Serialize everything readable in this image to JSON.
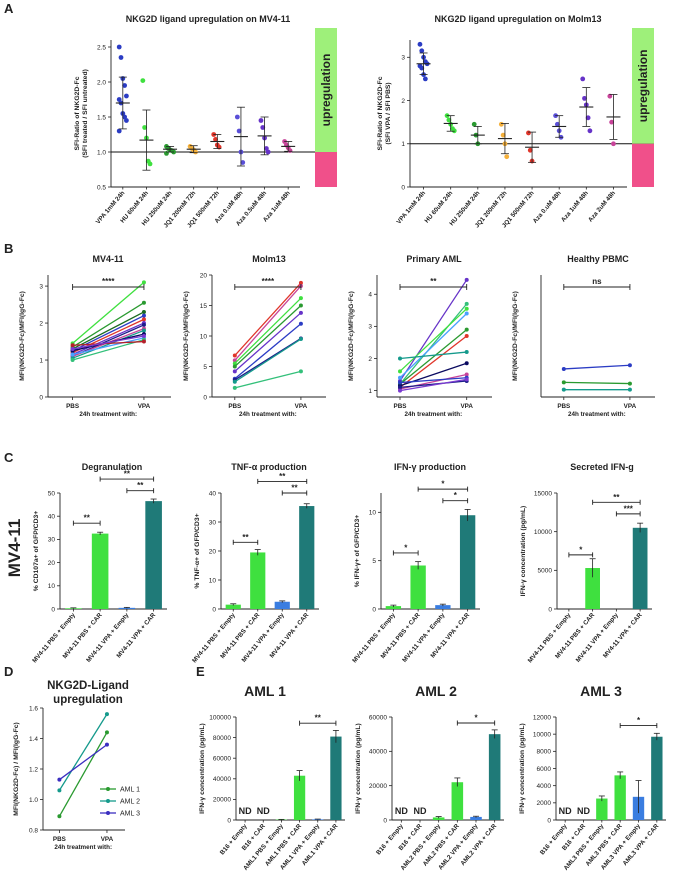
{
  "labels": {
    "A": "A",
    "B": "B",
    "C": "C",
    "D": "D",
    "E": "E"
  },
  "chart_data": [
    {
      "id": "A1",
      "type": "scatter",
      "title": "NKG2D ligand upregulation on MV4-11",
      "ylabel": "SFI-Ratio of NKG2D-Fc\n(SFI treated / SFI untreated)",
      "ylim": [
        0.5,
        2.6
      ],
      "yticks": [
        0.5,
        1.0,
        1.5,
        2.0,
        2.5
      ],
      "tick_labels": [
        "0.5",
        "1.0",
        "1.5",
        "2.0",
        "2.5"
      ],
      "baseline": 1.0,
      "side_label": "upregulation",
      "categories": [
        "VPA 1mM 24h",
        "HU 60uM 24h",
        "HU 250uM 24h",
        "JQ1 200nM 72h",
        "JQ1 500nM 72h",
        "Aza 0.uM 48h",
        "Aza 0.5uM 48h",
        "Aza 1uM 48h"
      ],
      "colors": [
        "#2b3cc4",
        "#3fe03f",
        "#2a9a30",
        "#f5b03a",
        "#e0352a",
        "#5a4fd8",
        "#6633c8",
        "#c8449a"
      ],
      "series": [
        {
          "mean": 1.7,
          "sd": 0.37,
          "points": [
            2.5,
            2.35,
            2.05,
            1.95,
            1.8,
            1.75,
            1.7,
            1.55,
            1.5,
            1.45,
            1.3
          ]
        },
        {
          "mean": 1.17,
          "sd": 0.43,
          "points": [
            2.02,
            1.35,
            1.2,
            0.87,
            0.83
          ]
        },
        {
          "mean": 1.04,
          "sd": 0.04,
          "points": [
            1.08,
            1.05,
            1.03,
            1.02,
            1.0,
            0.98
          ]
        },
        {
          "mean": 1.04,
          "sd": 0.05,
          "points": [
            1.08,
            1.05,
            1.03,
            1.0
          ]
        },
        {
          "mean": 1.15,
          "sd": 0.1,
          "points": [
            1.25,
            1.18,
            1.1,
            1.07
          ]
        },
        {
          "mean": 1.22,
          "sd": 0.42,
          "points": [
            1.5,
            1.3,
            1.0,
            0.85
          ]
        },
        {
          "mean": 1.23,
          "sd": 0.27,
          "points": [
            1.45,
            1.35,
            1.2,
            1.05,
            1.0
          ]
        },
        {
          "mean": 1.08,
          "sd": 0.07,
          "points": [
            1.15,
            1.1,
            1.06,
            1.02
          ]
        }
      ]
    },
    {
      "id": "A2",
      "type": "scatter",
      "title": "NKG2D ligand upregulation on Molm13",
      "ylabel": "SFI-Ratio of NKG2D-Fc\n(SFI VPA / SFI PBS)",
      "ylim": [
        0,
        3.4
      ],
      "yticks": [
        0,
        1,
        2,
        3
      ],
      "tick_labels": [
        "0",
        "1",
        "2",
        "3"
      ],
      "baseline": 1.0,
      "side_label": "upregulation",
      "categories": [
        "VPA 1mM 24h",
        "HU 60uM 24h",
        "HU 250uM 24h",
        "JQ1 200nM 72h",
        "JQ1 500nM 72h",
        "Aza 0.uM 48h",
        "Aza 1uM 48h",
        "Aza 2uM 48h"
      ],
      "colors": [
        "#2b3cc4",
        "#3fe03f",
        "#2a9a30",
        "#f5b03a",
        "#e0352a",
        "#5a4fd8",
        "#6633c8",
        "#c8449a"
      ],
      "series": [
        {
          "mean": 2.85,
          "sd": 0.25,
          "points": [
            3.3,
            3.15,
            3.0,
            2.9,
            2.85,
            2.8,
            2.75,
            2.6,
            2.5
          ]
        },
        {
          "mean": 1.47,
          "sd": 0.18,
          "points": [
            1.65,
            1.55,
            1.45,
            1.35,
            1.3
          ]
        },
        {
          "mean": 1.2,
          "sd": 0.2,
          "points": [
            1.45,
            1.2,
            1.0
          ]
        },
        {
          "mean": 1.12,
          "sd": 0.35,
          "points": [
            1.45,
            1.2,
            1.0,
            0.7
          ]
        },
        {
          "mean": 0.92,
          "sd": 0.35,
          "points": [
            1.25,
            0.85,
            0.6
          ]
        },
        {
          "mean": 1.4,
          "sd": 0.25,
          "points": [
            1.65,
            1.45,
            1.3,
            1.15
          ]
        },
        {
          "mean": 1.85,
          "sd": 0.45,
          "points": [
            2.5,
            2.05,
            1.9,
            1.6,
            1.3
          ]
        },
        {
          "mean": 1.62,
          "sd": 0.52,
          "points": [
            2.1,
            1.5,
            1.0
          ]
        }
      ]
    },
    {
      "id": "B1",
      "type": "line",
      "title": "MV4-11",
      "xcat": [
        "PBS",
        "VPA"
      ],
      "xlabel": "24h treatment with:",
      "ylabel": "MFI(NKG2D-Fc)/MFI(IgG-Fc)",
      "ylim": [
        0,
        3.3
      ],
      "yticks": [
        0,
        1,
        2,
        3
      ],
      "tick_labels": [
        "0",
        "1",
        "2",
        "3"
      ],
      "sig": "****",
      "lines": [
        [
          1.45,
          3.1
        ],
        [
          1.35,
          2.55
        ],
        [
          1.3,
          2.3
        ],
        [
          1.25,
          2.2
        ],
        [
          1.2,
          2.1
        ],
        [
          1.15,
          2.0
        ],
        [
          1.1,
          1.95
        ],
        [
          1.1,
          1.85
        ],
        [
          1.05,
          1.8
        ],
        [
          1.25,
          1.7
        ],
        [
          1.15,
          1.6
        ],
        [
          1.0,
          1.55
        ],
        [
          1.4,
          1.5
        ],
        [
          1.3,
          1.65
        ]
      ],
      "colors": [
        "#3fe03f",
        "#2a9a30",
        "#1a6a20",
        "#2b3cc4",
        "#e0352a",
        "#6633c8",
        "#1c1c8a",
        "#c8449a",
        "#159a8c",
        "#0a0a60",
        "#4aa0ff",
        "#33c07a",
        "#b5202a",
        "#7a3ad0"
      ]
    },
    {
      "id": "B2",
      "type": "line",
      "title": "Molm13",
      "xcat": [
        "PBS",
        "VPA"
      ],
      "xlabel": "24h treatment with:",
      "ylabel": "MFI(NKG2D-Fc)/MFI(IgG-Fc)",
      "ylim": [
        0,
        20
      ],
      "yticks": [
        0,
        5,
        10,
        15,
        20
      ],
      "tick_labels": [
        "0",
        "5",
        "10",
        "15",
        "20"
      ],
      "sig": "****",
      "lines": [
        [
          6.8,
          18.7
        ],
        [
          6.0,
          18.2
        ],
        [
          5.5,
          16.2
        ],
        [
          5.0,
          15.0
        ],
        [
          4.2,
          13.8
        ],
        [
          3.0,
          12.0
        ],
        [
          2.8,
          9.6
        ],
        [
          2.5,
          9.5
        ],
        [
          1.5,
          4.2
        ]
      ],
      "colors": [
        "#e0352a",
        "#c8449a",
        "#3fe03f",
        "#2a9a30",
        "#6633c8",
        "#2b3cc4",
        "#1c1c8a",
        "#159a8c",
        "#33c07a"
      ]
    },
    {
      "id": "B3",
      "type": "line",
      "title": "Primary AML",
      "xcat": [
        "PBS",
        "VPA"
      ],
      "xlabel": "24h treatment with:",
      "ylabel": "MFI(NKG2D-Fc)/MFI(IgG-Fc)",
      "ylim": [
        0.8,
        4.6
      ],
      "yticks": [
        1,
        2,
        3,
        4
      ],
      "tick_labels": [
        "1",
        "2",
        "3",
        "4"
      ],
      "sig": "**",
      "lines": [
        [
          1.3,
          4.45
        ],
        [
          1.2,
          3.7
        ],
        [
          1.6,
          3.55
        ],
        [
          1.4,
          3.4
        ],
        [
          1.2,
          2.9
        ],
        [
          1.1,
          2.7
        ],
        [
          2.0,
          2.2
        ],
        [
          1.15,
          1.85
        ],
        [
          1.05,
          1.5
        ],
        [
          1.25,
          1.4
        ],
        [
          1.1,
          1.3
        ],
        [
          1.0,
          1.35
        ]
      ],
      "colors": [
        "#6633c8",
        "#33c07a",
        "#3fe03f",
        "#4aa0ff",
        "#2a9a30",
        "#e0352a",
        "#159a8c",
        "#0a0a60",
        "#c8449a",
        "#2b3cc4",
        "#1c1c8a",
        "#7a3ad0"
      ]
    },
    {
      "id": "B4",
      "type": "line",
      "title": "Healthy PBMC",
      "xcat": [
        "PBS",
        "VPA"
      ],
      "xlabel": "24h treatment with:",
      "ylabel": "MFI(NKG2D-Fc)/MFI(IgG-Fc)",
      "ylim": [
        0,
        5
      ],
      "yticks": [],
      "tick_labels": [],
      "sig": "ns",
      "lines": [
        [
          1.15,
          1.3
        ],
        [
          0.6,
          0.55
        ],
        [
          0.3,
          0.3
        ]
      ],
      "colors": [
        "#2b3cc4",
        "#2a9a30",
        "#159a8c"
      ]
    },
    {
      "id": "C1",
      "type": "bar",
      "title": "Degranulation",
      "ylabel": "% CD107a+ of GFP/CD3+",
      "ylim": [
        0,
        50
      ],
      "yticks": [
        0,
        10,
        20,
        30,
        40,
        50
      ],
      "tick_labels": [
        "0",
        "10",
        "20",
        "30",
        "40",
        "50"
      ],
      "categories": [
        "MV4-11 PBS + Empty",
        "MV4-11 PBS + CAR",
        "MV4-11 VPA + Empty",
        "MV4-11 VPA + CAR"
      ],
      "values": [
        0.3,
        32.5,
        0.5,
        46.5
      ],
      "errors": [
        0.2,
        0.6,
        0.2,
        0.9
      ],
      "brackets": [
        {
          "a": 0,
          "b": 1,
          "label": "**",
          "y": 37
        },
        {
          "a": 2,
          "b": 3,
          "label": "**",
          "y": 51
        },
        {
          "a": 1,
          "b": 3,
          "label": "**",
          "y": 56
        }
      ]
    },
    {
      "id": "C2",
      "type": "bar",
      "title": "TNF-α production",
      "ylabel": "% TNF-α+ of GFP/CD3+",
      "ylim": [
        0,
        40
      ],
      "yticks": [
        0,
        10,
        20,
        30,
        40
      ],
      "tick_labels": [
        "0",
        "10",
        "20",
        "30",
        "40"
      ],
      "categories": [
        "MV4-11 PBS + Empty",
        "MV4-11 PBS + CAR",
        "MV4-11 VPA + Empty",
        "MV4-11 VPA + CAR"
      ],
      "values": [
        1.5,
        19.5,
        2.5,
        35.5
      ],
      "errors": [
        0.3,
        1.0,
        0.3,
        0.8
      ],
      "brackets": [
        {
          "a": 0,
          "b": 1,
          "label": "**",
          "y": 23
        },
        {
          "a": 2,
          "b": 3,
          "label": "**",
          "y": 40
        },
        {
          "a": 1,
          "b": 3,
          "label": "**",
          "y": 44
        }
      ]
    },
    {
      "id": "C3",
      "type": "bar",
      "title": "IFN-γ production",
      "ylabel": "% IFN-γ+ of GFP/CD3+",
      "ylim": [
        0,
        12
      ],
      "yticks": [
        0,
        5,
        10
      ],
      "tick_labels": [
        "0",
        "5",
        "10"
      ],
      "categories": [
        "MV4-11 PBS + Empty",
        "MV4-11 PBS + CAR",
        "MV4-11 VPA + Empty",
        "MV4-11 VPA + CAR"
      ],
      "values": [
        0.3,
        4.5,
        0.4,
        9.7
      ],
      "errors": [
        0.1,
        0.4,
        0.1,
        0.6
      ],
      "brackets": [
        {
          "a": 0,
          "b": 1,
          "label": "*",
          "y": 5.8
        },
        {
          "a": 2,
          "b": 3,
          "label": "*",
          "y": 11.2
        },
        {
          "a": 1,
          "b": 3,
          "label": "*",
          "y": 12.4
        }
      ]
    },
    {
      "id": "C4",
      "type": "bar",
      "title": "Secreted IFN-g",
      "ylabel": "IFN-γ concentration (pg/mL)",
      "ylim": [
        0,
        15000
      ],
      "yticks": [
        0,
        5000,
        10000,
        15000
      ],
      "tick_labels": [
        "0",
        "5000",
        "10000",
        "15000"
      ],
      "categories": [
        "MV4-11 PBS + Empty",
        "MV4-11 PBS + CAR",
        "MV4-11 VPA + Empty",
        "MV4-11 VPA + CAR"
      ],
      "values": [
        0,
        5300,
        0,
        10500
      ],
      "errors": [
        0,
        1200,
        0,
        600
      ],
      "brackets": [
        {
          "a": 0,
          "b": 1,
          "label": "*",
          "y": 7000
        },
        {
          "a": 2,
          "b": 3,
          "label": "***",
          "y": 12300
        },
        {
          "a": 1,
          "b": 3,
          "label": "**",
          "y": 13800
        }
      ]
    },
    {
      "id": "D",
      "type": "line",
      "title": "NKG2D-Ligand\nupregulation",
      "xcat": [
        "PBS",
        "VPA"
      ],
      "xlabel": "24h treatment with:",
      "ylabel": "MFI(NKG2D-Fc) / MFI(IgG-Fc)",
      "ylim": [
        0.8,
        1.6
      ],
      "yticks": [
        0.8,
        1.0,
        1.2,
        1.4,
        1.6
      ],
      "tick_labels": [
        "0.8",
        "1.0",
        "1.2",
        "1.4",
        "1.6"
      ],
      "lines": [
        [
          0.89,
          1.44
        ],
        [
          1.06,
          1.56
        ],
        [
          1.13,
          1.36
        ]
      ],
      "colors": [
        "#2a9a30",
        "#159a8c",
        "#3b2fc0"
      ],
      "legend": [
        "AML 1",
        "AML 2",
        "AML 3"
      ]
    },
    {
      "id": "E1",
      "type": "bar",
      "title": "AML 1",
      "ylabel": "IFN-γ concentration (pg/mL)",
      "ylim": [
        0,
        100000
      ],
      "yticks": [
        0,
        20000,
        40000,
        60000,
        80000,
        100000
      ],
      "tick_labels": [
        "0",
        "20000",
        "40000",
        "60000",
        "80000",
        "100000"
      ],
      "categories": [
        "B16 + Empty",
        "B16 + CAR",
        "AML1 PBS + Empty",
        "AML1 PBS + CAR",
        "AML1 VPA + Empty",
        "AML1 VPA + CAR"
      ],
      "values": [
        0,
        0,
        400,
        43000,
        600,
        81000
      ],
      "errors": [
        0,
        0,
        200,
        5000,
        300,
        6000
      ],
      "nd": [
        "ND",
        "ND"
      ],
      "brackets": [
        {
          "a": 3,
          "b": 5,
          "label": "**",
          "y": 94000
        }
      ]
    },
    {
      "id": "E2",
      "type": "bar",
      "title": "AML 2",
      "ylabel": "IFN-γ concentration (pg/mL)",
      "ylim": [
        0,
        60000
      ],
      "yticks": [
        0,
        20000,
        40000,
        60000
      ],
      "tick_labels": [
        "0",
        "20000",
        "40000",
        "60000"
      ],
      "categories": [
        "B16 + Empty",
        "B16 + CAR",
        "AML2 PBS + Empty",
        "AML2 PBS + CAR",
        "AML2 VPA + Empty",
        "AML2 VPA + CAR"
      ],
      "values": [
        0,
        0,
        1500,
        22000,
        1800,
        50000
      ],
      "errors": [
        0,
        0,
        500,
        2500,
        400,
        2500
      ],
      "nd": [
        "ND",
        "ND"
      ],
      "brackets": [
        {
          "a": 3,
          "b": 5,
          "label": "*",
          "y": 56500
        }
      ]
    },
    {
      "id": "E3",
      "type": "bar",
      "title": "AML 3",
      "ylabel": "IFN-γ concentration (pg/mL)",
      "ylim": [
        0,
        12000
      ],
      "yticks": [
        0,
        2000,
        4000,
        6000,
        8000,
        10000,
        12000
      ],
      "tick_labels": [
        "0",
        "2000",
        "4000",
        "6000",
        "8000",
        "10000",
        "12000"
      ],
      "categories": [
        "B16 + Empty",
        "B16 + CAR",
        "AML3 PBS + Empty",
        "AML3 PBS + CAR",
        "AML3 VPA + Empty",
        "AML3 VPA + CAR"
      ],
      "values": [
        0,
        0,
        2500,
        5200,
        2700,
        9700
      ],
      "errors": [
        0,
        0,
        300,
        400,
        1900,
        400
      ],
      "nd": [
        "ND",
        "ND"
      ],
      "brackets": [
        {
          "a": 3,
          "b": 5,
          "label": "*",
          "y": 11000
        }
      ]
    }
  ],
  "row_label_C": "MV4-11",
  "ns_label": "ns",
  "bar_colors": {
    "empty": "#3fe03f",
    "car": "#1f7a78",
    "empty_vpa": "#3a7de0",
    "pbs_empty_line": "#3fe03f"
  }
}
